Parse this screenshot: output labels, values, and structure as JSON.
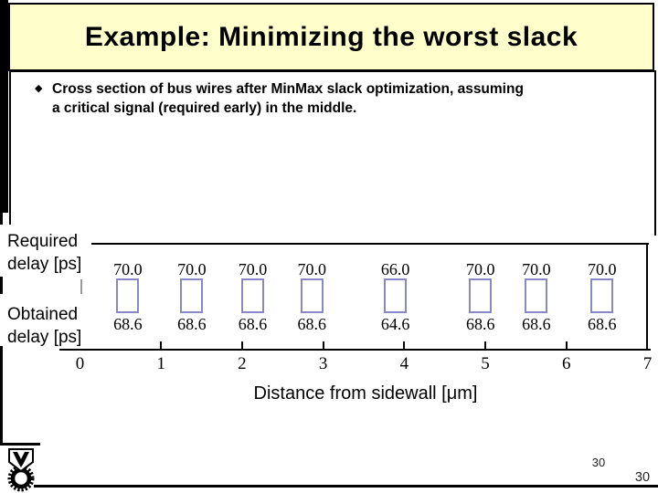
{
  "title": "Example: Minimizing the worst slack",
  "bullet": {
    "marker": "◆",
    "text": "Cross section of bus wires after MinMax slack optimization, assuming a critical signal (required early) in the middle."
  },
  "chart": {
    "required_label": {
      "line1": "Required",
      "line2": "delay [ps]"
    },
    "obtained_label": {
      "line1": "Obtained",
      "line2": "delay [ps]"
    },
    "x_axis_title": "Distance from sidewall [μm]"
  },
  "chart_data": {
    "type": "bar",
    "title": "Cross section of bus wires after MinMax slack optimization",
    "xlabel": "Distance from sidewall [μm]",
    "ylabel": "",
    "xlim": [
      0,
      7
    ],
    "x_ticks": [
      0,
      1,
      2,
      3,
      4,
      5,
      6,
      7
    ],
    "grid": false,
    "legend_position": "none",
    "wire_positions_um": [
      0.59,
      1.38,
      2.13,
      2.86,
      3.89,
      4.94,
      5.63,
      6.44
    ],
    "series": [
      {
        "name": "Required delay [ps]",
        "values": [
          70.0,
          70.0,
          70.0,
          70.0,
          66.0,
          70.0,
          70.0,
          70.0
        ]
      },
      {
        "name": "Obtained delay [ps]",
        "values": [
          68.6,
          68.6,
          68.6,
          68.6,
          64.6,
          68.6,
          68.6,
          68.6
        ]
      }
    ],
    "box_color": "#8888c4"
  },
  "footer": {
    "page_number": "30",
    "page_number_outer": "30",
    "logo": "technion-logo"
  },
  "colors": {
    "title_bg": "#ffffcc",
    "box_stroke": "#8888c4"
  }
}
